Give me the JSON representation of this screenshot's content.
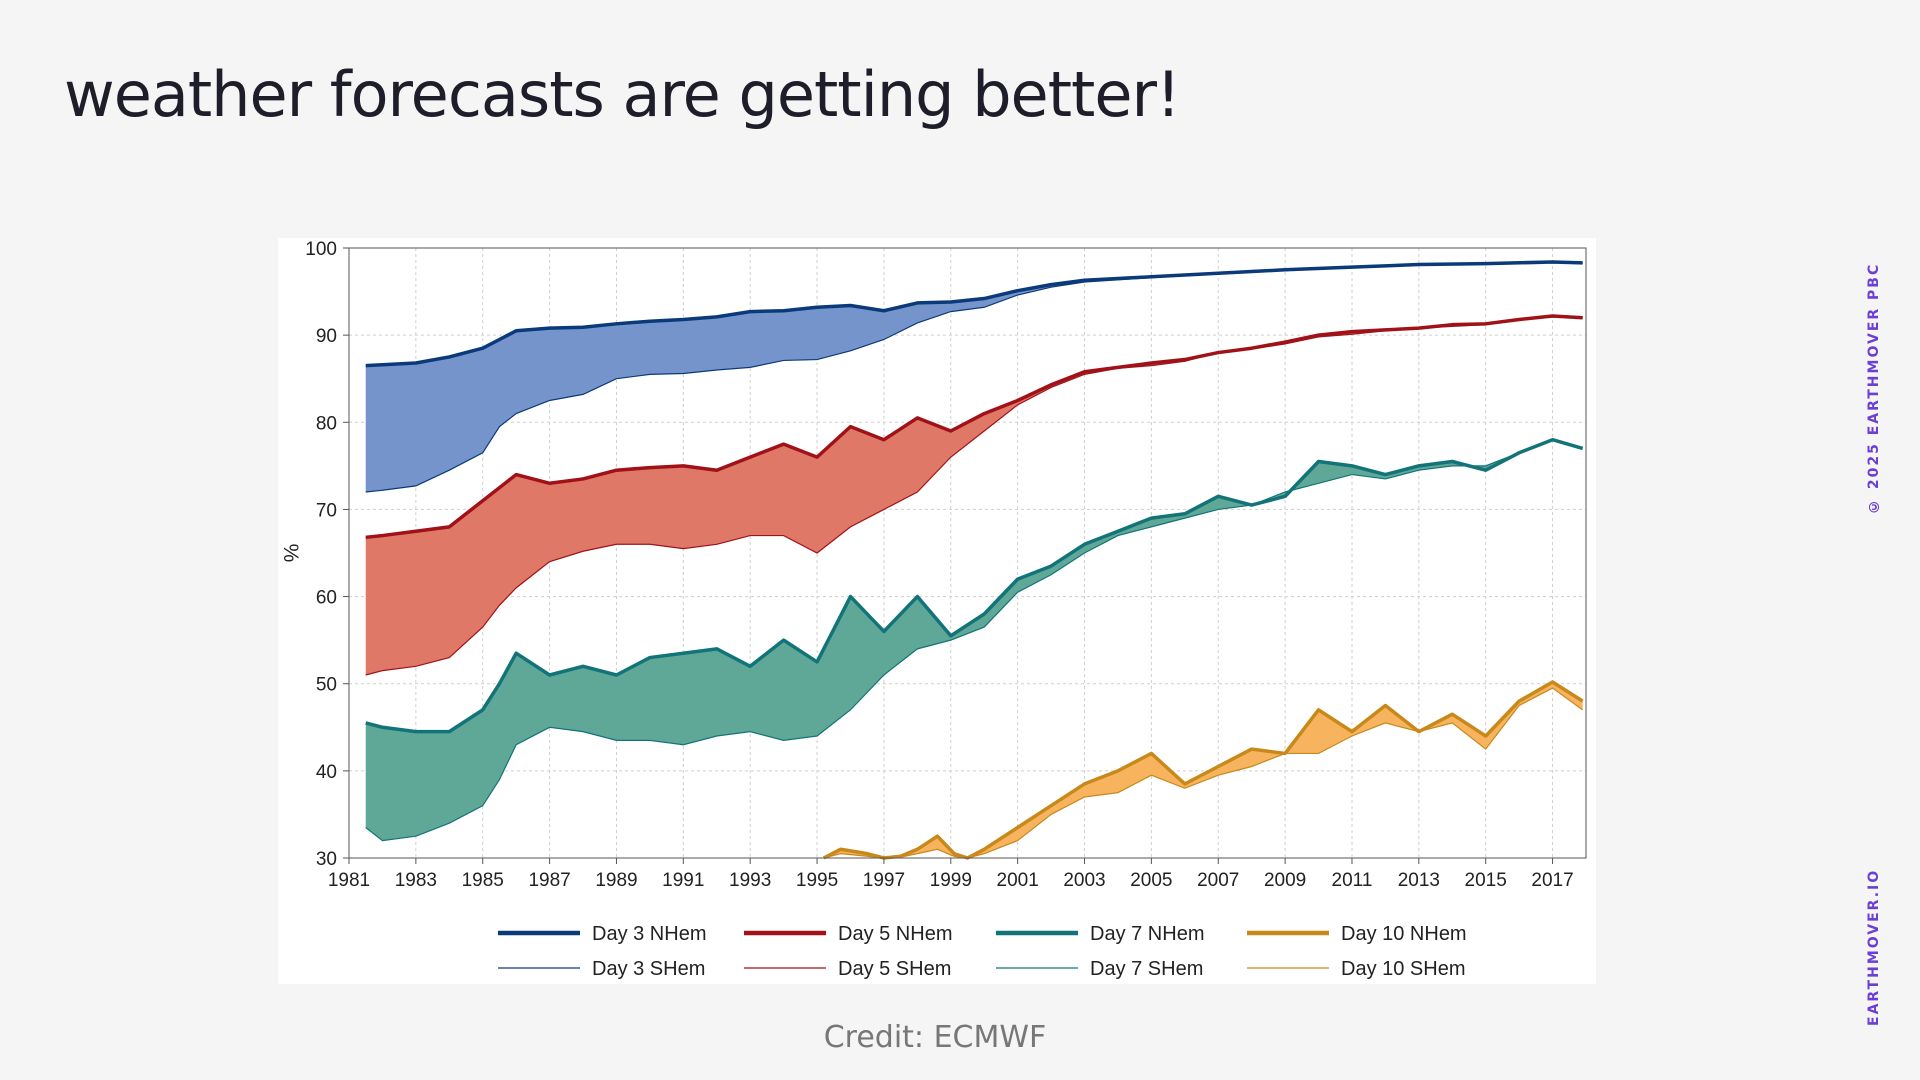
{
  "slide": {
    "title": "weather forecasts are getting better!",
    "credit": "Credit: ECMWF",
    "side_copyright": "© 2025 EARTHMOVER PBC",
    "side_site": "EARTHMOVER.IO"
  },
  "chart_data": {
    "type": "area",
    "title": "",
    "xlabel": "",
    "ylabel": "%",
    "xlim": [
      1981,
      2018
    ],
    "ylim": [
      30,
      100
    ],
    "xticks": [
      1981,
      1983,
      1985,
      1987,
      1989,
      1991,
      1993,
      1995,
      1997,
      1999,
      2001,
      2003,
      2005,
      2007,
      2009,
      2011,
      2013,
      2015,
      2017
    ],
    "yticks": [
      30,
      40,
      50,
      60,
      70,
      80,
      90,
      100
    ],
    "grid": true,
    "legend": "bottom",
    "bands": [
      {
        "color": "#0b3a7a",
        "fill": "#7594cc",
        "nhem": {
          "name": "Day 3 NHem",
          "x": [
            1981.5,
            1982,
            1983,
            1984,
            1985,
            1985.5,
            1986,
            1987,
            1988,
            1989,
            1990,
            1991,
            1992,
            1993,
            1994,
            1995,
            1996,
            1997,
            1998,
            1999,
            2000,
            2001,
            2002,
            2003,
            2005,
            2007,
            2009,
            2011,
            2013,
            2015,
            2017,
            2017.9
          ],
          "y": [
            86.5,
            86.6,
            86.8,
            87.5,
            88.5,
            89.5,
            90.5,
            90.8,
            90.9,
            91.3,
            91.6,
            91.8,
            92.1,
            92.7,
            92.8,
            93.2,
            93.4,
            92.8,
            93.7,
            93.8,
            94.2,
            95.1,
            95.8,
            96.3,
            96.7,
            97.1,
            97.5,
            97.8,
            98.1,
            98.2,
            98.4,
            98.3
          ]
        },
        "shem": {
          "name": "Day 3 SHem",
          "x": [
            1981.5,
            1982,
            1983,
            1984,
            1985,
            1985.5,
            1986,
            1987,
            1988,
            1989,
            1990,
            1991,
            1992,
            1993,
            1994,
            1995,
            1996,
            1997,
            1998,
            1999,
            2000,
            2001,
            2002,
            2003,
            2005,
            2007,
            2009,
            2011,
            2013,
            2015,
            2017,
            2017.9
          ],
          "y": [
            72,
            72.2,
            72.7,
            74.5,
            76.5,
            79.5,
            81,
            82.5,
            83.2,
            85,
            85.5,
            85.6,
            86,
            86.3,
            87.1,
            87.2,
            88.2,
            89.5,
            91.4,
            92.7,
            93.2,
            94.6,
            95.5,
            96.1,
            96.6,
            97.1,
            97.4,
            97.8,
            98.1,
            98.2,
            98.4,
            98.3
          ]
        }
      },
      {
        "color": "#a01218",
        "fill": "#e07868",
        "nhem": {
          "name": "Day 5 NHem",
          "x": [
            1981.5,
            1982,
            1983,
            1984,
            1985,
            1986,
            1987,
            1988,
            1989,
            1990,
            1991,
            1992,
            1993,
            1994,
            1995,
            1996,
            1997,
            1998,
            1999,
            2000,
            2001,
            2002,
            2003,
            2004,
            2005,
            2006,
            2007,
            2008,
            2009,
            2010,
            2011,
            2012,
            2013,
            2014,
            2015,
            2016,
            2017,
            2017.9
          ],
          "y": [
            66.8,
            67,
            67.5,
            68,
            71,
            74,
            73,
            73.5,
            74.5,
            74.8,
            75,
            74.5,
            76,
            77.5,
            76,
            79.5,
            78,
            80.5,
            79,
            81,
            82.5,
            84.3,
            85.8,
            86.3,
            86.8,
            87.2,
            88,
            88.5,
            89.2,
            90,
            90.4,
            90.6,
            90.8,
            91.2,
            91.3,
            91.8,
            92.2,
            92
          ]
        },
        "shem": {
          "name": "Day 5 SHem",
          "x": [
            1981.5,
            1982,
            1983,
            1984,
            1985,
            1985.5,
            1986,
            1987,
            1988,
            1989,
            1990,
            1991,
            1992,
            1993,
            1994,
            1995,
            1996,
            1997,
            1998,
            1999,
            2000,
            2001,
            2002,
            2003,
            2004,
            2005,
            2006,
            2007,
            2008,
            2009,
            2010,
            2011,
            2012,
            2013,
            2014,
            2015,
            2016,
            2017,
            2017.9
          ],
          "y": [
            51,
            51.5,
            52,
            53,
            56.5,
            59,
            61,
            64,
            65.2,
            66,
            66,
            65.5,
            66,
            67,
            67,
            65,
            68,
            70,
            72,
            76,
            79,
            82,
            84,
            85.5,
            86.2,
            86.5,
            87,
            88,
            88.4,
            89,
            89.8,
            90.1,
            90.5,
            90.8,
            91,
            91.2,
            91.8,
            92.1,
            92
          ]
        }
      },
      {
        "color": "#127478",
        "fill": "#5fa898",
        "nhem": {
          "name": "Day 7 NHem",
          "x": [
            1981.5,
            1982,
            1983,
            1984,
            1985,
            1985.5,
            1986,
            1987,
            1988,
            1989,
            1990,
            1991,
            1992,
            1993,
            1994,
            1995,
            1996,
            1997,
            1998,
            1999,
            2000,
            2001,
            2002,
            2003,
            2004,
            2005,
            2006,
            2007,
            2008,
            2009,
            2010,
            2011,
            2012,
            2013,
            2014,
            2015,
            2016,
            2017,
            2017.9
          ],
          "y": [
            45.5,
            45,
            44.5,
            44.5,
            47,
            50,
            53.5,
            51,
            52,
            51,
            53,
            53.5,
            54,
            52,
            55,
            52.5,
            60,
            56,
            60,
            55.5,
            58,
            62,
            63.5,
            66,
            67.5,
            69,
            69.5,
            71.5,
            70.5,
            71.5,
            75.5,
            75,
            74,
            75,
            75.5,
            74.5,
            76.5,
            78,
            77
          ]
        },
        "shem": {
          "name": "Day 7 SHem",
          "x": [
            1981.5,
            1982,
            1983,
            1984,
            1985,
            1985.5,
            1986,
            1987,
            1988,
            1989,
            1990,
            1991,
            1992,
            1993,
            1994,
            1995,
            1996,
            1997,
            1998,
            1999,
            2000,
            2001,
            2002,
            2003,
            2004,
            2005,
            2006,
            2007,
            2008,
            2009,
            2010,
            2011,
            2012,
            2013,
            2014,
            2015,
            2016,
            2017,
            2017.9
          ],
          "y": [
            33.5,
            32,
            32.5,
            34,
            36,
            39,
            43,
            45,
            44.5,
            43.5,
            43.5,
            43,
            44,
            44.5,
            43.5,
            44,
            47,
            51,
            54,
            55,
            56.5,
            60.5,
            62.5,
            65,
            67,
            68,
            69,
            70,
            70.5,
            72,
            73,
            74,
            73.5,
            74.5,
            75,
            75,
            76.5,
            78,
            77
          ]
        }
      },
      {
        "color": "#c8891a",
        "fill": "#f7b35e",
        "nhem": {
          "name": "Day 10 NHem",
          "x": [
            1995.2,
            1995.7,
            1996.5,
            1997,
            1997.5,
            1998,
            1998.6,
            1999.1,
            1999.5,
            2000,
            2001,
            2002,
            2003,
            2004,
            2005,
            2006,
            2007,
            2008,
            2009,
            2010,
            2011,
            2012,
            2013,
            2014,
            2015,
            2016,
            2017,
            2017.9
          ],
          "y": [
            30,
            31,
            30.5,
            30,
            30.2,
            31,
            32.5,
            30.5,
            30,
            31,
            33.5,
            36,
            38.5,
            40,
            42,
            38.5,
            40.5,
            42.5,
            42,
            47,
            44.5,
            47.5,
            44.5,
            46.5,
            44,
            48,
            50.2,
            48
          ]
        },
        "shem": {
          "name": "Day 10 SHem",
          "x": [
            1995.2,
            1995.7,
            1996.5,
            1997,
            1997.5,
            1998,
            1998.6,
            1999.1,
            1999.5,
            2000,
            2001,
            2002,
            2003,
            2004,
            2005,
            2006,
            2007,
            2008,
            2009,
            2010,
            2011,
            2012,
            2013,
            2014,
            2015,
            2016,
            2017,
            2017.9
          ],
          "y": [
            30,
            30.5,
            30.2,
            30,
            30.1,
            30.5,
            31,
            30.2,
            30,
            30.5,
            32,
            35,
            37,
            37.5,
            39.5,
            38,
            39.5,
            40.5,
            42,
            42,
            44,
            45.5,
            44.5,
            45.5,
            42.5,
            47.5,
            49.5,
            47
          ]
        }
      }
    ]
  }
}
